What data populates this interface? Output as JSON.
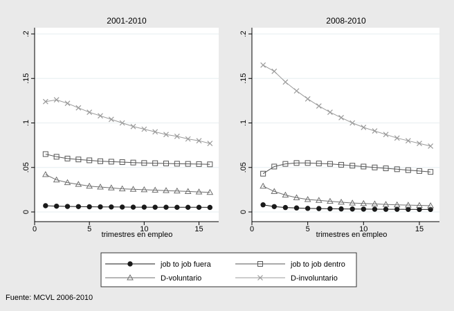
{
  "colors": {
    "background": "#eaeaea",
    "plot_bg": "#ffffff",
    "gridline": "#e6eef0",
    "fuera": "#1a1a1a",
    "dentro": "#555555",
    "voluntario": "#6e6e6e",
    "involuntario": "#9a9a9a"
  },
  "source_note": "Fuente: MCVL 2006-2010",
  "legend": [
    {
      "key": "fuera",
      "label": "job to job fuera",
      "marker": "filled-circle"
    },
    {
      "key": "dentro",
      "label": "job to job dentro",
      "marker": "hollow-square"
    },
    {
      "key": "voluntario",
      "label": "D-voluntario",
      "marker": "hollow-triangle"
    },
    {
      "key": "involuntario",
      "label": "D-involuntario",
      "marker": "x-cross"
    }
  ],
  "chart_data": [
    {
      "type": "line",
      "title": "2001-2010",
      "xlabel": "trimestres en empleo",
      "ylabel": "",
      "x": [
        1,
        2,
        3,
        4,
        5,
        6,
        7,
        8,
        9,
        10,
        11,
        12,
        13,
        14,
        15,
        16
      ],
      "xlim": [
        0,
        16.8
      ],
      "ylim": [
        0,
        0.2
      ],
      "xticks": [
        "0",
        "5",
        "10",
        "15"
      ],
      "yticks": [
        "0",
        ".05",
        ".1",
        ".15",
        ".2"
      ],
      "grid": true,
      "series": [
        {
          "name": "job to job fuera",
          "key": "fuera",
          "values": [
            0.007,
            0.0065,
            0.0062,
            0.006,
            0.0058,
            0.0057,
            0.0056,
            0.0055,
            0.0054,
            0.0054,
            0.0053,
            0.0053,
            0.0052,
            0.0052,
            0.0052,
            0.0051
          ]
        },
        {
          "name": "job to job dentro",
          "key": "dentro",
          "values": [
            0.065,
            0.062,
            0.06,
            0.059,
            0.058,
            0.057,
            0.0565,
            0.056,
            0.0555,
            0.055,
            0.0548,
            0.0545,
            0.0542,
            0.054,
            0.0538,
            0.0535
          ]
        },
        {
          "name": "D-voluntario",
          "key": "voluntario",
          "values": [
            0.042,
            0.036,
            0.033,
            0.031,
            0.029,
            0.028,
            0.027,
            0.026,
            0.0255,
            0.025,
            0.0245,
            0.024,
            0.0235,
            0.023,
            0.0225,
            0.022
          ]
        },
        {
          "name": "D-involuntario",
          "key": "involuntario",
          "values": [
            0.124,
            0.126,
            0.122,
            0.117,
            0.112,
            0.108,
            0.104,
            0.1,
            0.096,
            0.093,
            0.09,
            0.087,
            0.085,
            0.082,
            0.08,
            0.077
          ]
        }
      ]
    },
    {
      "type": "line",
      "title": "2008-2010",
      "xlabel": "trimestres en empleo",
      "ylabel": "",
      "x": [
        1,
        2,
        3,
        4,
        5,
        6,
        7,
        8,
        9,
        10,
        11,
        12,
        13,
        14,
        15,
        16
      ],
      "xlim": [
        0,
        16.8
      ],
      "ylim": [
        0,
        0.2
      ],
      "xticks": [
        "0",
        "5",
        "10",
        "15"
      ],
      "yticks": [
        "0",
        ".05",
        ".1",
        ".15",
        ".2"
      ],
      "grid": true,
      "series": [
        {
          "name": "job to job fuera",
          "key": "fuera",
          "values": [
            0.008,
            0.006,
            0.005,
            0.0045,
            0.004,
            0.0038,
            0.0036,
            0.0034,
            0.0033,
            0.0032,
            0.0031,
            0.003,
            0.003,
            0.0029,
            0.0028,
            0.0028
          ]
        },
        {
          "name": "job to job dentro",
          "key": "dentro",
          "values": [
            0.043,
            0.051,
            0.054,
            0.055,
            0.055,
            0.0545,
            0.054,
            0.053,
            0.052,
            0.051,
            0.05,
            0.049,
            0.048,
            0.047,
            0.046,
            0.045
          ]
        },
        {
          "name": "D-voluntario",
          "key": "voluntario",
          "values": [
            0.029,
            0.023,
            0.019,
            0.016,
            0.014,
            0.013,
            0.012,
            0.011,
            0.01,
            0.0095,
            0.009,
            0.0085,
            0.008,
            0.0077,
            0.0074,
            0.007
          ]
        },
        {
          "name": "D-involuntario",
          "key": "involuntario",
          "values": [
            0.165,
            0.158,
            0.146,
            0.136,
            0.127,
            0.119,
            0.112,
            0.106,
            0.1,
            0.095,
            0.091,
            0.087,
            0.083,
            0.08,
            0.077,
            0.074
          ]
        }
      ]
    }
  ]
}
